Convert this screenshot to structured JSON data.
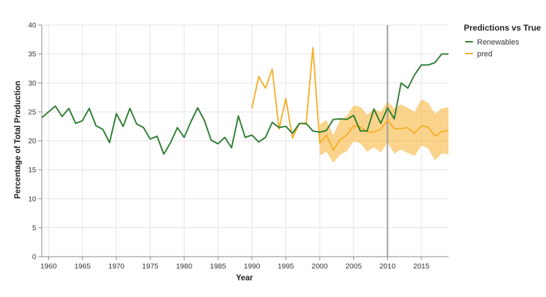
{
  "chart_data": {
    "type": "line",
    "xlabel": "Year",
    "ylabel": "Percentage of Total Production",
    "xlim": [
      1959,
      2019
    ],
    "ylim": [
      0,
      40
    ],
    "x_ticks": [
      1960,
      1965,
      1970,
      1975,
      1980,
      1985,
      1990,
      1995,
      2000,
      2005,
      2010,
      2015
    ],
    "y_ticks": [
      0,
      5,
      10,
      15,
      20,
      25,
      30,
      35,
      40
    ],
    "grid": true,
    "vertical_rule_x": 2010,
    "legend": {
      "title": "Predictions vs True",
      "placement": "top-right",
      "entries": [
        {
          "label": "Renewables",
          "color": "#2e7d32"
        },
        {
          "label": "pred",
          "color": "#f5b02e"
        }
      ]
    },
    "series": [
      {
        "name": "Renewables",
        "color": "#2e7d32",
        "x": [
          1959,
          1960,
          1961,
          1962,
          1963,
          1964,
          1965,
          1966,
          1967,
          1968,
          1969,
          1970,
          1971,
          1972,
          1973,
          1974,
          1975,
          1976,
          1977,
          1978,
          1979,
          1980,
          1981,
          1982,
          1983,
          1984,
          1985,
          1986,
          1987,
          1988,
          1989,
          1990,
          1991,
          1992,
          1993,
          1994,
          1995,
          1996,
          1997,
          1998,
          1999,
          2000,
          2001,
          2002,
          2003,
          2004,
          2005,
          2006,
          2007,
          2008,
          2009,
          2010,
          2011,
          2012,
          2013,
          2014,
          2015,
          2016,
          2017,
          2018,
          2019
        ],
        "y": [
          24.0,
          25.0,
          26.0,
          24.2,
          25.6,
          23.0,
          23.5,
          25.6,
          22.6,
          22.0,
          19.7,
          24.7,
          22.5,
          25.6,
          22.9,
          22.3,
          20.3,
          20.8,
          17.7,
          19.7,
          22.3,
          20.6,
          23.3,
          25.7,
          23.5,
          20.1,
          19.5,
          20.6,
          18.8,
          24.3,
          20.6,
          21.0,
          19.8,
          20.6,
          23.2,
          22.3,
          22.5,
          21.3,
          23.0,
          23.0,
          21.7,
          21.5,
          21.8,
          23.7,
          23.8,
          23.7,
          24.4,
          21.7,
          21.7,
          25.5,
          23.0,
          25.7,
          23.8,
          30.0,
          29.1,
          31.4,
          33.1,
          33.1,
          33.5,
          35.0,
          35.0
        ]
      },
      {
        "name": "pred",
        "color": "#f5b02e",
        "x": [
          1990,
          1991,
          1992,
          1993,
          1994,
          1995,
          1996,
          1997,
          1998,
          1999,
          2000,
          2001,
          2002,
          2003,
          2004,
          2005,
          2006,
          2007,
          2008,
          2009,
          2010,
          2011,
          2012,
          2013,
          2014,
          2015,
          2016,
          2017,
          2018,
          2019
        ],
        "y": [
          25.6,
          31.1,
          29.1,
          32.4,
          22.0,
          27.3,
          20.5,
          23.0,
          22.9,
          36.1,
          19.6,
          21.0,
          18.4,
          20.2,
          21.0,
          22.6,
          22.4,
          21.6,
          21.5,
          22.0,
          23.6,
          22.1,
          22.1,
          22.3,
          21.3,
          22.6,
          22.4,
          20.8,
          21.6,
          21.8
        ],
        "band_x": [
          2000,
          2001,
          2002,
          2003,
          2004,
          2005,
          2006,
          2007,
          2008,
          2009,
          2010,
          2011,
          2012,
          2013,
          2014,
          2015,
          2016,
          2017,
          2018,
          2019
        ],
        "band_lower": [
          17.5,
          18.1,
          16.2,
          17.6,
          18.2,
          19.9,
          19.6,
          18.1,
          18.9,
          18.0,
          19.7,
          17.8,
          18.5,
          17.9,
          17.4,
          19.2,
          18.7,
          16.6,
          17.8,
          17.7
        ],
        "band_upper": [
          22.8,
          23.6,
          21.0,
          23.6,
          24.3,
          26.1,
          25.9,
          24.5,
          25.5,
          25.0,
          26.8,
          25.6,
          26.3,
          25.7,
          25.0,
          27.2,
          26.6,
          24.7,
          25.6,
          25.8
        ]
      }
    ]
  }
}
